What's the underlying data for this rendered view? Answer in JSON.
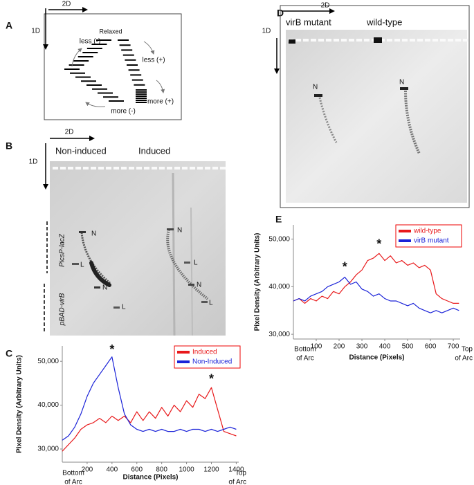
{
  "panels": {
    "a": {
      "label": "A",
      "axis_2d": "2D",
      "axis_1d": "1D",
      "relaxed": "Relaxed",
      "less_neg": "less (-)",
      "less_pos": "less (+)",
      "more_neg": "more (-)",
      "more_pos": "more (+)"
    },
    "b": {
      "label": "B",
      "axis_2d": "2D",
      "axis_1d": "1D",
      "lane_1": "Non-induced",
      "lane_2": "Induced",
      "plasmid_1": "PicsP-lacZ",
      "plasmid_2": "pBAD-virB",
      "bands": [
        "N",
        "L",
        "N",
        "L",
        "N",
        "L",
        "N",
        "L"
      ]
    },
    "c": {
      "label": "C"
    },
    "d": {
      "label": "D",
      "axis_2d": "2D",
      "axis_1d": "1D",
      "lane_1": "virB mutant",
      "lane_2": "wild-type",
      "bands": [
        "N",
        "N"
      ]
    },
    "e": {
      "label": "E"
    }
  },
  "chart_data": [
    {
      "type": "line",
      "x_label": "Distance (Pixels)",
      "y_label": "Pixel Density (Arbitrary Units)",
      "x_start_label": [
        "Bottom",
        "of Arc"
      ],
      "x_end_label": [
        "Top",
        "of Arc"
      ],
      "xlim": [
        0,
        1420
      ],
      "ylim": [
        27000,
        53500
      ],
      "xticks": [
        200,
        400,
        600,
        800,
        1000,
        1200,
        1400
      ],
      "yticks": [
        {
          "value": 30000,
          "label": "30,000"
        },
        {
          "value": 40000,
          "label": "40,000"
        },
        {
          "value": 50000,
          "label": "50,000"
        }
      ],
      "legend": "upper right",
      "x": [
        0,
        50,
        100,
        150,
        200,
        250,
        300,
        350,
        400,
        450,
        500,
        550,
        600,
        650,
        700,
        750,
        800,
        850,
        900,
        950,
        1000,
        1050,
        1100,
        1150,
        1200,
        1250,
        1300,
        1350,
        1400
      ],
      "series": [
        {
          "name": "Induced",
          "color": "#e8191b",
          "values": [
            29500,
            31000,
            32500,
            34500,
            35500,
            36000,
            37000,
            36000,
            37500,
            36500,
            37500,
            36000,
            38500,
            36500,
            38500,
            37000,
            39500,
            37500,
            40000,
            38500,
            41000,
            39500,
            42500,
            41500,
            44000,
            39000,
            34000,
            33500,
            33000
          ]
        },
        {
          "name": "Non-Induced",
          "color": "#1a22d8",
          "values": [
            32000,
            33000,
            35000,
            38000,
            42000,
            45000,
            47000,
            49000,
            51000,
            44000,
            38000,
            35500,
            34500,
            34000,
            34500,
            34000,
            34500,
            34000,
            34000,
            34500,
            34000,
            34500,
            34500,
            34000,
            34500,
            34000,
            34500,
            35000,
            34500
          ]
        }
      ],
      "annotations": [
        {
          "text": "*",
          "x": 400,
          "y": 52500
        },
        {
          "text": "*",
          "x": 1200,
          "y": 45800
        }
      ]
    },
    {
      "type": "line",
      "x_label": "Distance (Pixels)",
      "y_label": "Pixel Density (Arbitrary Units)",
      "x_start_label": [
        "Bottom",
        "of Arc"
      ],
      "x_end_label": [
        "Top",
        "of Arc"
      ],
      "xlim": [
        0,
        730
      ],
      "ylim": [
        29000,
        53000
      ],
      "xticks": [
        100,
        200,
        300,
        400,
        500,
        600,
        700
      ],
      "yticks": [
        {
          "value": 30000,
          "label": "30,000"
        },
        {
          "value": 40000,
          "label": "40,000"
        },
        {
          "value": 50000,
          "label": "50,000"
        }
      ],
      "legend": "upper right",
      "x": [
        0,
        25,
        50,
        75,
        100,
        125,
        150,
        175,
        200,
        225,
        250,
        275,
        300,
        325,
        350,
        375,
        400,
        425,
        450,
        475,
        500,
        525,
        550,
        575,
        600,
        625,
        650,
        675,
        700,
        725
      ],
      "series": [
        {
          "name": "wild-type",
          "color": "#e8191b",
          "values": [
            37000,
            37500,
            36500,
            37500,
            37000,
            38000,
            37500,
            39000,
            38500,
            40000,
            41000,
            42500,
            43500,
            45500,
            46000,
            47000,
            45500,
            46500,
            45000,
            45500,
            44500,
            45000,
            44000,
            44500,
            43500,
            38500,
            37500,
            37000,
            36500,
            36500
          ]
        },
        {
          "name": "virB mutant",
          "color": "#1a22d8",
          "values": [
            37000,
            37500,
            37000,
            38000,
            38500,
            39000,
            40000,
            40500,
            41000,
            42000,
            40500,
            41000,
            39500,
            39000,
            38000,
            38500,
            37500,
            37000,
            37000,
            36500,
            36000,
            36500,
            35500,
            35000,
            34500,
            35000,
            34500,
            35000,
            35500,
            35000
          ]
        }
      ],
      "annotations": [
        {
          "text": "*",
          "x": 225,
          "y": 44000
        },
        {
          "text": "*",
          "x": 375,
          "y": 48800
        }
      ]
    }
  ]
}
